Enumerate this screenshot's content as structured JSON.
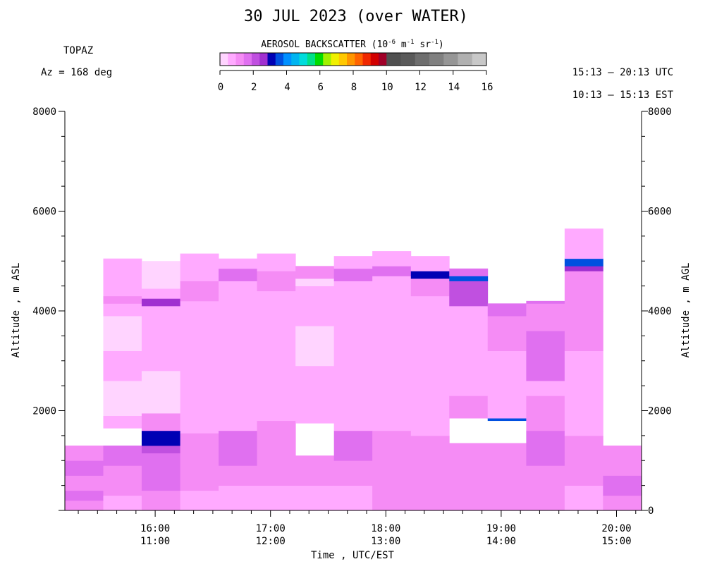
{
  "title": "30 JUL 2023 (over WATER)",
  "instrument": "TOPAZ",
  "azimuth": "Az = 168 deg",
  "time_range_utc": "15:13 – 20:13 UTC",
  "time_range_est": "10:13 – 15:13 EST",
  "colorbar": {
    "title_prefix": "AEROSOL BACKSCATTER (10",
    "title_exp1": "-6",
    "title_mid": " m",
    "title_exp2": "-1",
    "title_mid2": " sr",
    "title_exp3": "-1",
    "title_suffix": ")",
    "tick_labels": [
      "0",
      "2",
      "4",
      "6",
      "8",
      "10",
      "12",
      "14",
      "16"
    ],
    "colors": [
      "#ffd4ff",
      "#ffaaff",
      "#f58cf5",
      "#e070f0",
      "#c050e0",
      "#a030d0",
      "#0000b4",
      "#0050e0",
      "#0090ff",
      "#00b4f0",
      "#00dcdc",
      "#00e088",
      "#00dc00",
      "#a0f000",
      "#f0f000",
      "#ffc800",
      "#ff9600",
      "#ff6400",
      "#f02800",
      "#d20000",
      "#a00028",
      "#505050",
      "#5a5a5a",
      "#6e6e6e",
      "#808080",
      "#969696",
      "#b0b0b0",
      "#c8c8c8"
    ]
  },
  "chart_data": {
    "type": "heatmap",
    "title": "30 JUL 2023 (over WATER)",
    "xlabel": "Time , UTC/EST",
    "ylabel_left": "Altitude , m ASL",
    "ylabel_right": "Altitude , m AGL",
    "x_utc_hours": [
      15.217,
      20.217
    ],
    "ylim": [
      0,
      8000
    ],
    "y_ticks_left": [
      "2000",
      "4000",
      "6000",
      "8000"
    ],
    "y_ticks_right": [
      "0",
      "2000",
      "4000",
      "6000",
      "8000"
    ],
    "x_ticks": [
      {
        "utc": "16:00",
        "est": "11:00",
        "hour": 16
      },
      {
        "utc": "17:00",
        "est": "12:00",
        "hour": 17
      },
      {
        "utc": "18:00",
        "est": "13:00",
        "hour": 18
      },
      {
        "utc": "19:00",
        "est": "14:00",
        "hour": 19
      },
      {
        "utc": "20:00",
        "est": "15:00",
        "hour": 20
      }
    ],
    "value_units": "1e-6 m-1 sr-1",
    "profiles": [
      {
        "t0": 15.217,
        "t1": 15.55,
        "layers": [
          [
            0,
            200,
            1.2
          ],
          [
            200,
            400,
            1.5
          ],
          [
            400,
            700,
            1.4
          ],
          [
            700,
            1000,
            1.6
          ],
          [
            1000,
            1300,
            1.2
          ]
        ]
      },
      {
        "t0": 15.55,
        "t1": 15.883,
        "layers": [
          [
            0,
            300,
            0.9
          ],
          [
            300,
            600,
            1.3
          ],
          [
            600,
            900,
            1.1
          ],
          [
            900,
            1300,
            1.5
          ],
          [
            1650,
            1900,
            0.7
          ],
          [
            1900,
            2600,
            0.4
          ],
          [
            2600,
            3200,
            0.5
          ],
          [
            3200,
            3900,
            0.3
          ],
          [
            3900,
            4150,
            0.6
          ],
          [
            4150,
            4300,
            1.3
          ],
          [
            4300,
            4800,
            0.7
          ],
          [
            4800,
            5050,
            0.6
          ]
        ]
      },
      {
        "t0": 15.883,
        "t1": 16.217,
        "layers": [
          [
            0,
            400,
            1.2
          ],
          [
            400,
            800,
            1.5
          ],
          [
            800,
            1150,
            1.6
          ],
          [
            1150,
            1300,
            2.2
          ],
          [
            1300,
            1600,
            3.3
          ],
          [
            1600,
            1950,
            1.3
          ],
          [
            1950,
            2800,
            0.4
          ],
          [
            2800,
            3500,
            0.6
          ],
          [
            3500,
            4100,
            0.5
          ],
          [
            4100,
            4250,
            2.6
          ],
          [
            4250,
            4450,
            0.8
          ],
          [
            4450,
            5000,
            0.4
          ]
        ]
      },
      {
        "t0": 16.217,
        "t1": 16.55,
        "layers": [
          [
            0,
            400,
            0.9
          ],
          [
            400,
            800,
            1.2
          ],
          [
            800,
            1550,
            1.4
          ],
          [
            1550,
            2000,
            0.9
          ],
          [
            2000,
            2800,
            0.8
          ],
          [
            2800,
            3500,
            0.6
          ],
          [
            3500,
            4200,
            0.7
          ],
          [
            4200,
            4600,
            1.2
          ],
          [
            4600,
            5150,
            0.6
          ]
        ]
      },
      {
        "t0": 16.55,
        "t1": 16.883,
        "layers": [
          [
            0,
            500,
            0.8
          ],
          [
            500,
            900,
            1.2
          ],
          [
            900,
            1600,
            1.5
          ],
          [
            1600,
            2100,
            0.9
          ],
          [
            2100,
            2900,
            0.7
          ],
          [
            2900,
            3800,
            0.5
          ],
          [
            3800,
            4300,
            0.8
          ],
          [
            4300,
            4600,
            0.9
          ],
          [
            4600,
            4850,
            1.6
          ],
          [
            4850,
            5050,
            0.8
          ]
        ]
      },
      {
        "t0": 16.883,
        "t1": 17.217,
        "layers": [
          [
            0,
            500,
            0.9
          ],
          [
            500,
            1000,
            1.3
          ],
          [
            1000,
            1400,
            1.0
          ],
          [
            1400,
            1800,
            1.2
          ],
          [
            1800,
            2800,
            0.7
          ],
          [
            2800,
            4100,
            0.5
          ],
          [
            4100,
            4400,
            0.9
          ],
          [
            4400,
            4800,
            1.1
          ],
          [
            4800,
            5150,
            0.6
          ]
        ]
      },
      {
        "t0": 17.217,
        "t1": 17.55,
        "layers": [
          [
            0,
            500,
            0.9
          ],
          [
            500,
            1100,
            1.4
          ],
          [
            1750,
            2100,
            0.8
          ],
          [
            2100,
            2900,
            0.6
          ],
          [
            2900,
            3700,
            0.4
          ],
          [
            3700,
            4300,
            0.5
          ],
          [
            4300,
            4500,
            0.7
          ],
          [
            4500,
            4650,
            0.3
          ],
          [
            4650,
            4900,
            1.2
          ]
        ]
      },
      {
        "t0": 17.55,
        "t1": 17.883,
        "layers": [
          [
            0,
            500,
            0.9
          ],
          [
            500,
            1000,
            1.3
          ],
          [
            1000,
            1600,
            1.5
          ],
          [
            1600,
            2400,
            0.8
          ],
          [
            2400,
            3200,
            0.6
          ],
          [
            3200,
            4100,
            0.5
          ],
          [
            4100,
            4600,
            0.9
          ],
          [
            4600,
            4850,
            1.6
          ],
          [
            4850,
            5100,
            0.7
          ]
        ]
      },
      {
        "t0": 17.883,
        "t1": 18.217,
        "layers": [
          [
            0,
            500,
            1.0
          ],
          [
            500,
            1100,
            1.3
          ],
          [
            1100,
            1600,
            1.2
          ],
          [
            1600,
            2200,
            0.6
          ],
          [
            2200,
            3200,
            0.7
          ],
          [
            3200,
            4000,
            0.5
          ],
          [
            4000,
            4700,
            0.6
          ],
          [
            4700,
            4900,
            1.7
          ],
          [
            4900,
            5200,
            0.7
          ]
        ]
      },
      {
        "t0": 18.217,
        "t1": 18.55,
        "layers": [
          [
            0,
            500,
            1.2
          ],
          [
            500,
            1100,
            1.4
          ],
          [
            1100,
            1500,
            1.0
          ],
          [
            1500,
            1900,
            0.6
          ],
          [
            1900,
            2700,
            0.7
          ],
          [
            2700,
            3600,
            0.5
          ],
          [
            3600,
            4300,
            0.7
          ],
          [
            4300,
            4650,
            1.1
          ],
          [
            4650,
            4800,
            3.2
          ],
          [
            4800,
            5100,
            0.8
          ]
        ]
      },
      {
        "t0": 18.55,
        "t1": 18.883,
        "layers": [
          [
            0,
            500,
            1.1
          ],
          [
            500,
            1000,
            1.4
          ],
          [
            1000,
            1350,
            1.2
          ],
          [
            1850,
            2300,
            1.1
          ],
          [
            2300,
            2900,
            0.9
          ],
          [
            2900,
            3800,
            0.7
          ],
          [
            3800,
            4100,
            0.9
          ],
          [
            4100,
            4600,
            2.2
          ],
          [
            4600,
            4700,
            3.4
          ],
          [
            4700,
            4850,
            1.5
          ]
        ]
      },
      {
        "t0": 18.883,
        "t1": 19.217,
        "layers": [
          [
            0,
            500,
            1.3
          ],
          [
            500,
            1000,
            1.4
          ],
          [
            1000,
            1350,
            1.2
          ],
          [
            1800,
            1850,
            3.4
          ],
          [
            1850,
            2400,
            0.8
          ],
          [
            2400,
            3200,
            0.9
          ],
          [
            3200,
            3900,
            1.4
          ],
          [
            3900,
            4150,
            1.8
          ]
        ]
      },
      {
        "t0": 19.217,
        "t1": 19.55,
        "layers": [
          [
            0,
            400,
            1.0
          ],
          [
            400,
            900,
            1.3
          ],
          [
            900,
            1600,
            1.5
          ],
          [
            1600,
            2300,
            1.0
          ],
          [
            2300,
            2600,
            0.7
          ],
          [
            2600,
            3600,
            1.5
          ],
          [
            3600,
            4150,
            1.3
          ],
          [
            4150,
            4200,
            1.9
          ]
        ]
      },
      {
        "t0": 19.55,
        "t1": 19.883,
        "layers": [
          [
            0,
            500,
            0.8
          ],
          [
            500,
            1000,
            1.1
          ],
          [
            1000,
            1500,
            1.2
          ],
          [
            1500,
            2200,
            0.8
          ],
          [
            2200,
            3200,
            0.7
          ],
          [
            3200,
            4000,
            1.0
          ],
          [
            4000,
            4800,
            1.3
          ],
          [
            4800,
            4900,
            2.5
          ],
          [
            4900,
            5050,
            3.6
          ],
          [
            5050,
            5650,
            0.7
          ]
        ]
      },
      {
        "t0": 19.883,
        "t1": 20.217,
        "layers": [
          [
            0,
            300,
            1.2
          ],
          [
            300,
            700,
            1.5
          ],
          [
            700,
            1000,
            1.3
          ],
          [
            1000,
            1300,
            1.4
          ]
        ]
      }
    ]
  }
}
